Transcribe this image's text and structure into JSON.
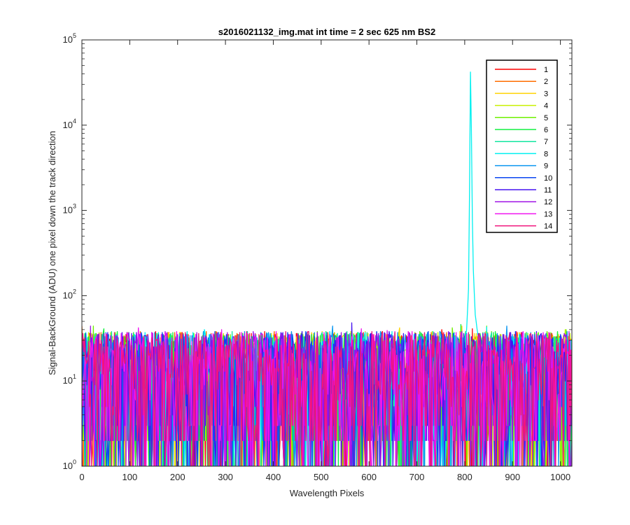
{
  "chart_data": {
    "type": "line",
    "title": "s2016021132_img.mat int time = 2 sec  625 nm BS2",
    "xlabel": "Wavelength Pixels",
    "ylabel": "Signal-BackGround (ADU) one pixel down the track direction",
    "xlim": [
      0,
      1024
    ],
    "ylim": [
      1,
      100000
    ],
    "yscale": "log",
    "xticks": [
      0,
      100,
      200,
      300,
      400,
      500,
      600,
      700,
      800,
      900,
      1000
    ],
    "yticks": [
      {
        "value": 1,
        "mantissa": "10",
        "exp": "0"
      },
      {
        "value": 10,
        "mantissa": "10",
        "exp": "1"
      },
      {
        "value": 100,
        "mantissa": "10",
        "exp": "2"
      },
      {
        "value": 1000,
        "mantissa": "10",
        "exp": "3"
      },
      {
        "value": 10000,
        "mantissa": "10",
        "exp": "4"
      },
      {
        "value": 100000,
        "mantissa": "10",
        "exp": "5"
      }
    ],
    "grid": false,
    "legend_position": "top-right",
    "noise_description": "all 14 tracks fluctuate between about 1 and 50 ADU across all pixels",
    "noise_range": [
      1,
      50
    ],
    "series": [
      {
        "name": "1",
        "color": "#ff0000"
      },
      {
        "name": "2",
        "color": "#ff6d00"
      },
      {
        "name": "3",
        "color": "#ffd200"
      },
      {
        "name": "4",
        "color": "#c8f000"
      },
      {
        "name": "5",
        "color": "#6ef000"
      },
      {
        "name": "6",
        "color": "#12f040"
      },
      {
        "name": "7",
        "color": "#12e6a0"
      },
      {
        "name": "8",
        "color": "#00f0f0",
        "peak": [
          [
            800,
            30
          ],
          [
            804,
            40
          ],
          [
            808,
            120
          ],
          [
            810,
            1500
          ],
          [
            812,
            42000
          ],
          [
            814,
            9000
          ],
          [
            816,
            800
          ],
          [
            818,
            200
          ],
          [
            820,
            110
          ],
          [
            822,
            60
          ],
          [
            826,
            40
          ],
          [
            832,
            25
          ]
        ]
      },
      {
        "name": "9",
        "color": "#0a96f0"
      },
      {
        "name": "10",
        "color": "#0a46f0"
      },
      {
        "name": "11",
        "color": "#4614f0"
      },
      {
        "name": "12",
        "color": "#a014e6"
      },
      {
        "name": "13",
        "color": "#f014f0"
      },
      {
        "name": "14",
        "color": "#f0147d"
      }
    ]
  }
}
